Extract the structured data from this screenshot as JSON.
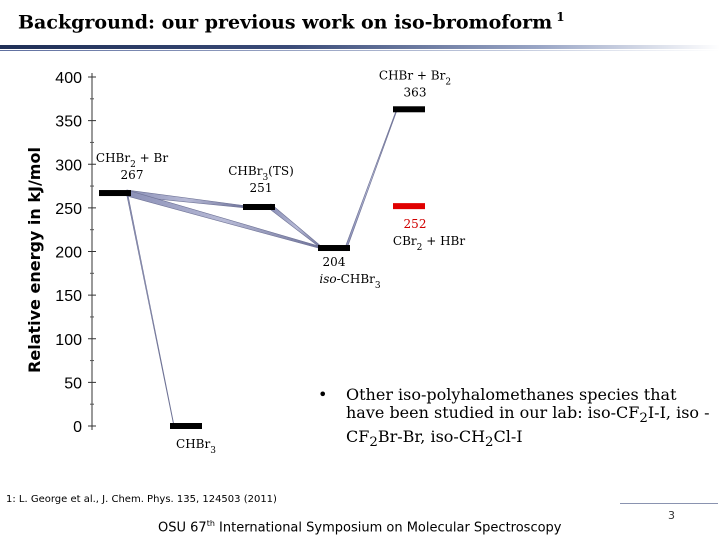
{
  "slide": {
    "title": "Background: our previous work on iso-bromoform",
    "title_ref": "1",
    "bullet": {
      "marker": "•",
      "text_parts": [
        "Other iso-polyhalomethanes species that have been studied in our lab: iso-CF",
        "2",
        "I-I, iso -CF",
        "2",
        "Br-Br, iso-CH",
        "2",
        "Cl-I"
      ]
    },
    "footnote": "1: L. George et al., J. Chem. Phys. 135, 124503 (2011)",
    "footer_prefix": "OSU 67",
    "footer_sup": "th",
    "footer_suffix": " International Symposium on Molecular Spectroscopy",
    "page_number": "3"
  },
  "chart_data": {
    "type": "energy-level-diagram",
    "ylabel": "Relative energy in kJ/mol",
    "ylim": [
      0,
      400
    ],
    "yticks": [
      "400",
      "350",
      "300",
      "250",
      "200",
      "150",
      "100",
      "50",
      "0"
    ],
    "ytick_values": [
      400,
      350,
      300,
      250,
      200,
      150,
      100,
      50,
      0
    ],
    "levels": [
      {
        "id": "chbr3",
        "label": "CHBr3",
        "value_label": "",
        "energy": 0,
        "color": "#000000",
        "column": 1
      },
      {
        "id": "chbr2_br",
        "label": "CHBr2 + Br",
        "value_label": "267",
        "energy": 267,
        "color": "#000000",
        "column": 0
      },
      {
        "id": "ts",
        "label": "CHBr3(TS)",
        "value_label": "251",
        "energy": 251,
        "color": "#000000",
        "column": 2
      },
      {
        "id": "iso",
        "label": "iso-CHBr3",
        "value_label": "204",
        "energy": 204,
        "color": "#000000",
        "column": 3
      },
      {
        "id": "chbr_br2",
        "label": "CHBr + Br2",
        "value_label": "363",
        "energy": 363,
        "color": "#000000",
        "column": 4
      },
      {
        "id": "cbr2_hbr",
        "label": "CBr2 + HBr",
        "value_label": "252",
        "energy": 252,
        "color": "#e00000",
        "column": 4
      }
    ],
    "connections": [
      [
        "chbr2_br",
        "chbr3"
      ],
      [
        "chbr2_br",
        "ts"
      ],
      [
        "chbr2_br",
        "iso"
      ],
      [
        "ts",
        "iso"
      ],
      [
        "iso",
        "chbr_br2"
      ]
    ]
  }
}
